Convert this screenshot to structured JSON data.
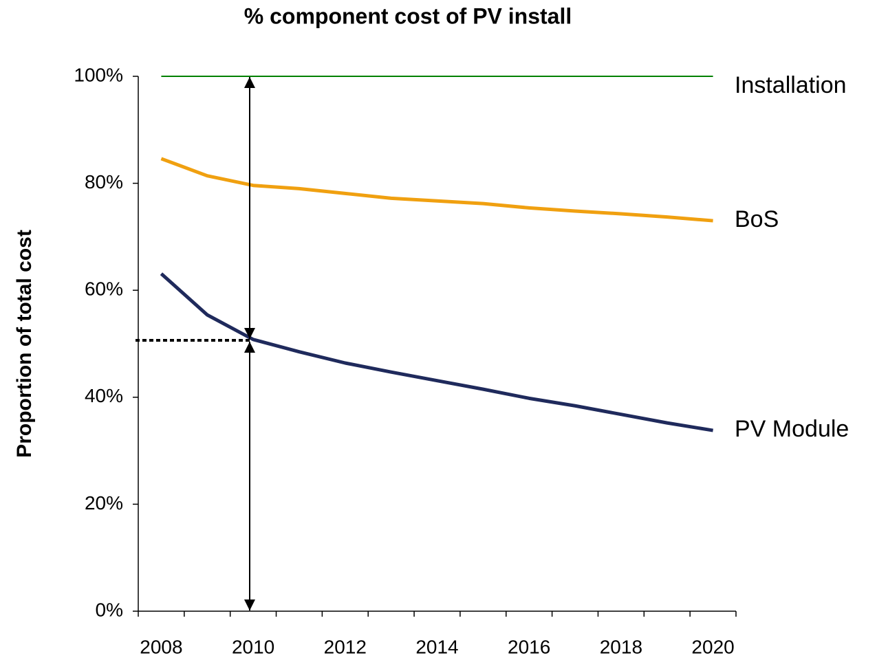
{
  "chart_data": {
    "type": "line",
    "title": "% component cost of PV install",
    "y_label": "Proportion of total cost",
    "categories": [
      "2008",
      null,
      "2010",
      null,
      "2012",
      null,
      "2014",
      null,
      "2016",
      null,
      "2018",
      null,
      "2020"
    ],
    "series": [
      {
        "name": "Installation",
        "color": "#008000",
        "values": [
          100,
          100,
          100,
          100,
          100,
          100,
          100,
          100,
          100,
          100,
          100,
          100,
          100
        ]
      },
      {
        "name": "BoS",
        "color": "#f0a010",
        "values": [
          84.6,
          81.4,
          79.6,
          79.0,
          78.1,
          77.2,
          76.7,
          76.2,
          75.4,
          74.8,
          74.3,
          73.7,
          73.0
        ]
      },
      {
        "name": "PV Module",
        "color": "#1f2a5c",
        "values": [
          63.1,
          55.4,
          50.8,
          48.5,
          46.4,
          44.7,
          43.1,
          41.5,
          39.8,
          38.4,
          36.8,
          35.2,
          33.8
        ]
      }
    ],
    "ylim": [
      0,
      100
    ],
    "yticks": [
      {
        "value": 0,
        "label": "0%"
      },
      {
        "value": 20,
        "label": "20%"
      },
      {
        "value": 40,
        "label": "40%"
      },
      {
        "value": 60,
        "label": "60%"
      },
      {
        "value": 80,
        "label": "80%"
      },
      {
        "value": 100,
        "label": "100%"
      }
    ],
    "grid": false
  }
}
